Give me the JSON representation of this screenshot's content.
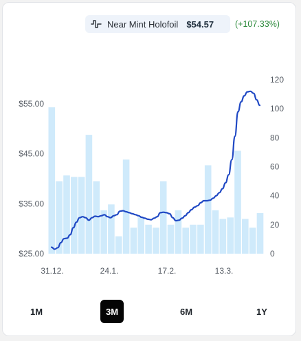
{
  "header": {
    "variant_name": "Near Mint Holofoil",
    "price": "$54.57",
    "change": "(+107.33%)",
    "icon": "pulse-icon"
  },
  "colors": {
    "line": "#1f48c4",
    "bars": "#cfeafb",
    "change_positive": "#2e8b3d",
    "active_range_bg": "#050505"
  },
  "range": {
    "options": [
      "1M",
      "3M",
      "6M",
      "1Y"
    ],
    "selected": "3M"
  },
  "chart_data": {
    "type": "bar+line",
    "x_tick_labels": [
      "31.12.",
      "24.1.",
      "17.2.",
      "13.3."
    ],
    "y_left": {
      "ticks": [
        "$55.00",
        "$45.00",
        "$35.00",
        "$25.00"
      ],
      "range": [
        25,
        55
      ]
    },
    "y_right": {
      "ticks": [
        "120",
        "100",
        "80",
        "60",
        "40",
        "20",
        "0"
      ],
      "range": [
        0,
        120
      ]
    },
    "bars": {
      "axis": "right",
      "values": [
        101,
        50,
        54,
        53,
        53,
        82,
        50,
        30,
        34,
        12,
        65,
        18,
        25,
        20,
        18,
        50,
        20,
        30,
        18,
        20,
        20,
        61,
        30,
        24,
        25,
        71,
        24,
        18,
        28
      ]
    },
    "line": {
      "axis": "left",
      "values": [
        26.3,
        25.9,
        26.2,
        27.2,
        28.0,
        28.1,
        28.8,
        30.2,
        31.3,
        32.2,
        32.4,
        32.2,
        31.7,
        32.2,
        32.5,
        32.4,
        32.6,
        32.8,
        32.4,
        32.2,
        32.6,
        32.8,
        33.5,
        33.6,
        33.4,
        33.2,
        33.0,
        32.8,
        32.6,
        32.3,
        32.1,
        31.9,
        31.8,
        32.1,
        32.4,
        33.2,
        33.3,
        33.2,
        33.0,
        32.2,
        31.6,
        31.7,
        32.1,
        32.6,
        33.2,
        33.8,
        34.3,
        34.6,
        35.2,
        35.6,
        35.6,
        35.7,
        36.1,
        36.6,
        37.2,
        38.0,
        39.2,
        40.8,
        43.8,
        48.5,
        53.4,
        55.4,
        56.6,
        57.4,
        57.5,
        57.1,
        55.8,
        54.7
      ],
      "color": "#1f48c4"
    }
  }
}
